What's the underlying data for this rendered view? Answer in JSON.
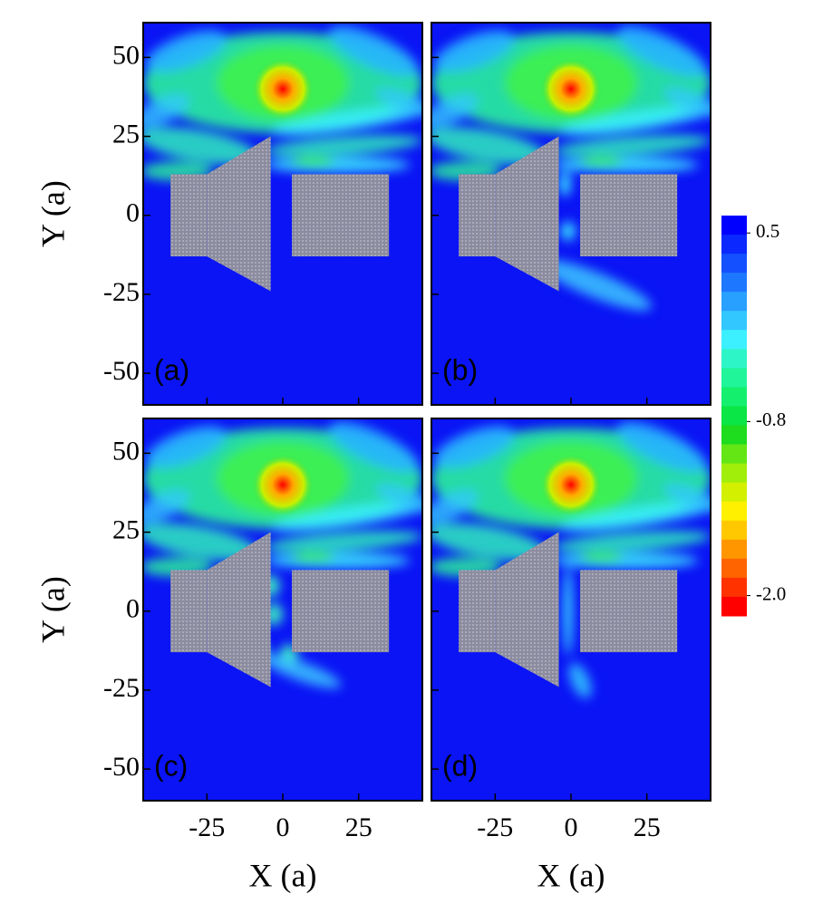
{
  "chart_data": [
    {
      "type": "heatmap",
      "label": "(a)",
      "y_label": "Y (a)",
      "xlim": [
        -46,
        46
      ],
      "ylim": [
        -60,
        61
      ],
      "xticks": [
        -25,
        0,
        25
      ],
      "yticks": [
        -50,
        -25,
        0,
        25,
        50
      ],
      "show_xtick_labels": false,
      "show_ytick_labels": true
    },
    {
      "type": "heatmap",
      "label": "(b)",
      "xlim": [
        -46,
        46
      ],
      "ylim": [
        -60,
        61
      ],
      "xticks": [
        -25,
        0,
        25
      ],
      "yticks": [
        -50,
        -25,
        0,
        25,
        50
      ],
      "show_xtick_labels": false,
      "show_ytick_labels": false
    },
    {
      "type": "heatmap",
      "label": "(c)",
      "x_label": "X (a)",
      "y_label": "Y (a)",
      "xlim": [
        -46,
        46
      ],
      "ylim": [
        -60,
        61
      ],
      "xticks": [
        -25,
        0,
        25
      ],
      "yticks": [
        -50,
        -25,
        0,
        25,
        50
      ],
      "show_xtick_labels": true,
      "show_ytick_labels": true
    },
    {
      "type": "heatmap",
      "label": "(d)",
      "x_label": "X (a)",
      "xlim": [
        -46,
        46
      ],
      "ylim": [
        -60,
        61
      ],
      "xticks": [
        -25,
        0,
        25
      ],
      "yticks": [
        -50,
        -25,
        0,
        25,
        50
      ],
      "show_xtick_labels": true,
      "show_ytick_labels": false
    }
  ],
  "colorbar": {
    "clim": [
      -2.14,
      0.62
    ],
    "ticks": [
      {
        "value": -2,
        "label": "-2.0"
      },
      -0.8,
      0.5
    ],
    "colors": [
      "#0000ff",
      "#0a28ff",
      "#1450ff",
      "#1e78ff",
      "#28a0ff",
      "#32c8ff",
      "#3cf0ff",
      "#2ef5c8",
      "#20f59a",
      "#14f06e",
      "#0ae646",
      "#1edc1e",
      "#64e614",
      "#a0ee0a",
      "#d2f000",
      "#fff000",
      "#ffc800",
      "#ff9600",
      "#ff6400",
      "#ff3200",
      "#ff0000"
    ]
  }
}
